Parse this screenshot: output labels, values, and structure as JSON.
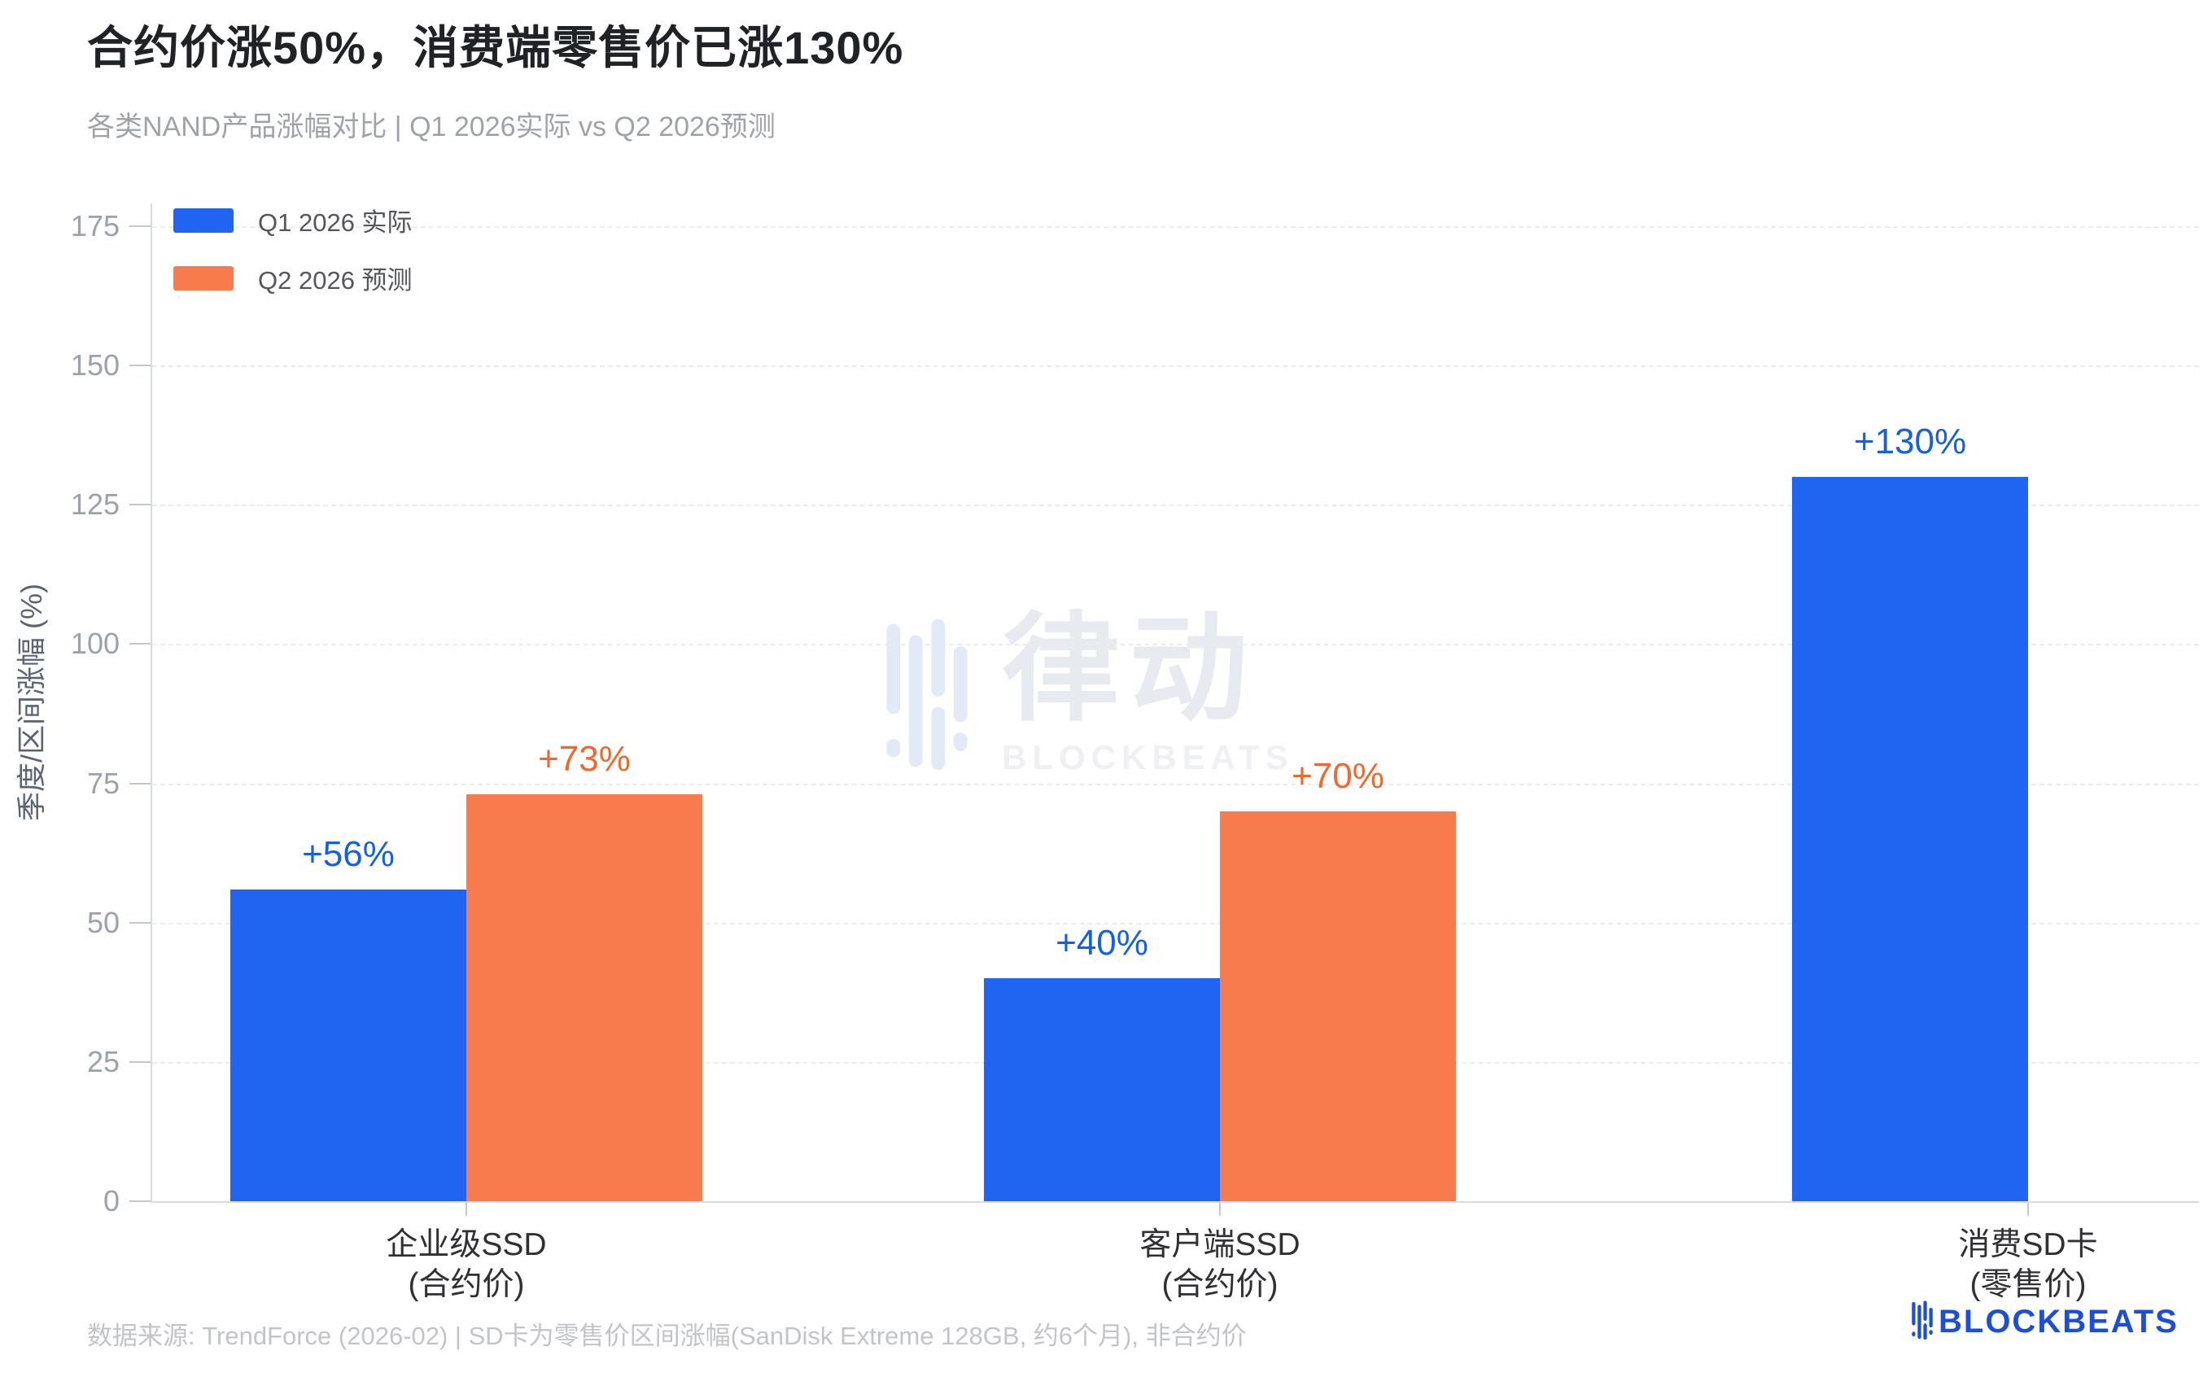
{
  "title": "合约价涨50%，消费端零售价已涨130%",
  "subtitle": "各类NAND产品涨幅对比 | Q1 2026实际 vs Q2 2026预测",
  "legend": {
    "items": [
      {
        "label": "Q1 2026 实际",
        "color": "#2065f2"
      },
      {
        "label": "Q2 2026 预测",
        "color": "#f87b4e"
      }
    ]
  },
  "chart_data": {
    "type": "bar",
    "categories": [
      {
        "line1": "企业级SSD",
        "line2": "(合约价)"
      },
      {
        "line1": "客户端SSD",
        "line2": "(合约价)"
      },
      {
        "line1": "消费SD卡",
        "line2": "(零售价)"
      }
    ],
    "series": [
      {
        "name": "Q1 2026 实际",
        "color": "#2065f2",
        "label_color": "#1560e0",
        "values": [
          56,
          40,
          130
        ],
        "labels": [
          "+56%",
          "+40%",
          "+130%"
        ]
      },
      {
        "name": "Q2 2026 预测",
        "color": "#f87b4e",
        "label_color": "#f1682e",
        "values": [
          73,
          70,
          null
        ],
        "labels": [
          "+73%",
          "+70%",
          null
        ]
      }
    ],
    "ylabel": "季度/区间涨幅 (%)",
    "ylim": [
      0,
      175
    ],
    "yticks": [
      0,
      25,
      50,
      75,
      100,
      125,
      150,
      175
    ],
    "grid": "horizontal dashed",
    "legend_position": "top-left inside plot"
  },
  "watermark": {
    "cjk": "律动",
    "latin": "BLOCKBEATS"
  },
  "footer": {
    "source": "数据来源: TrendForce (2026-02) | SD卡为零售价区间涨幅(SanDisk Extreme 128GB, 约6个月), 非合约价"
  },
  "logo": {
    "text": "BLOCKBEATS",
    "color": "#1c4fd6"
  }
}
